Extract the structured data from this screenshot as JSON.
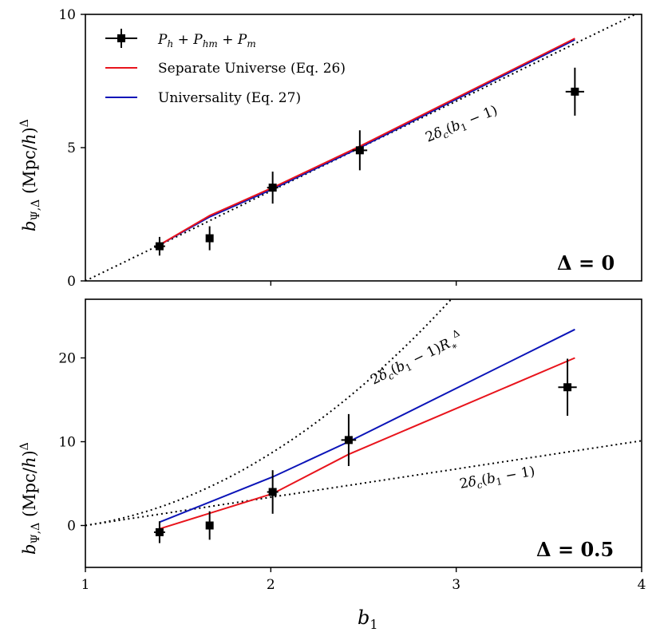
{
  "chart_data": [
    {
      "type": "scatter",
      "panel": "top",
      "tag": "Δ = 0",
      "ylabel": "b_{Ψ,Δ} (Mpc/h)^Δ",
      "xlabel": "",
      "xlim": [
        1,
        4
      ],
      "ylim": [
        0,
        10
      ],
      "y_ticks": [
        0,
        5,
        10
      ],
      "y_tick_labels": [
        "0",
        "5",
        "10"
      ],
      "x_ticks": [
        2,
        3
      ],
      "x_tick_labels": [],
      "legend_position": "top-left",
      "legend": [
        {
          "label": "P_h + P_hm + P_m",
          "style": "errorbar"
        },
        {
          "label": "Separate Universe (Eq. 26)",
          "color": "#e8141c"
        },
        {
          "label": "Universality (Eq. 27)",
          "color": "#0b14b8"
        }
      ],
      "points": {
        "name": "P_h + P_hm + P_m",
        "x": [
          1.4,
          1.67,
          2.01,
          2.48,
          3.64
        ],
        "y": [
          1.3,
          1.6,
          3.5,
          4.9,
          7.1
        ],
        "yerr": [
          0.35,
          0.45,
          0.6,
          0.75,
          0.9
        ],
        "xerr": [
          0.03,
          0.02,
          0.03,
          0.04,
          0.05
        ]
      },
      "series": [
        {
          "name": "Separate Universe (Eq. 26)",
          "color": "#e8141c",
          "x": [
            1.4,
            1.67,
            2.01,
            2.48,
            3.64
          ],
          "y": [
            1.35,
            2.45,
            3.5,
            5.05,
            9.1
          ]
        },
        {
          "name": "Universality (Eq. 27)",
          "color": "#0b14b8",
          "x": [
            1.4,
            1.67,
            2.01,
            2.48,
            3.64
          ],
          "y": [
            1.35,
            2.4,
            3.45,
            5.0,
            9.05
          ]
        }
      ],
      "reference_lines": [
        {
          "label": "2δ_c(b_1 − 1)",
          "formula": "2*1.686*(x-1)"
        }
      ]
    },
    {
      "type": "scatter",
      "panel": "bottom",
      "tag": "Δ = 0.5",
      "ylabel": "b_{Ψ,Δ} (Mpc/h)^Δ",
      "xlabel": "b_1",
      "xlim": [
        1,
        4
      ],
      "ylim": [
        -5,
        27
      ],
      "y_ticks": [
        0,
        10,
        20
      ],
      "y_tick_labels": [
        "0",
        "10",
        "20"
      ],
      "x_ticks": [
        1,
        2,
        3,
        4
      ],
      "x_tick_labels": [
        "1",
        "2",
        "3",
        "4"
      ],
      "points": {
        "name": "P_h + P_hm + P_m",
        "x": [
          1.4,
          1.67,
          2.01,
          2.42,
          3.6
        ],
        "y": [
          -0.8,
          0.0,
          4.0,
          10.2,
          16.5
        ],
        "yerr": [
          1.3,
          1.7,
          2.6,
          3.1,
          3.4
        ],
        "xerr": [
          0.03,
          0.02,
          0.03,
          0.04,
          0.05
        ]
      },
      "series": [
        {
          "name": "Separate Universe (Eq. 26)",
          "color": "#e8141c",
          "x": [
            1.4,
            2.01,
            2.42,
            3.64
          ],
          "y": [
            -0.4,
            3.8,
            8.5,
            20.0
          ]
        },
        {
          "name": "Universality (Eq. 27)",
          "color": "#0b14b8",
          "x": [
            1.4,
            2.01,
            2.42,
            3.64
          ],
          "y": [
            0.4,
            5.8,
            10.0,
            23.4
          ]
        }
      ],
      "reference_lines": [
        {
          "label": "2δ_c(b_1 − 1)R_*^Δ",
          "formula": "steep"
        },
        {
          "label": "2δ_c(b_1 − 1)",
          "formula": "shallow"
        }
      ]
    }
  ]
}
